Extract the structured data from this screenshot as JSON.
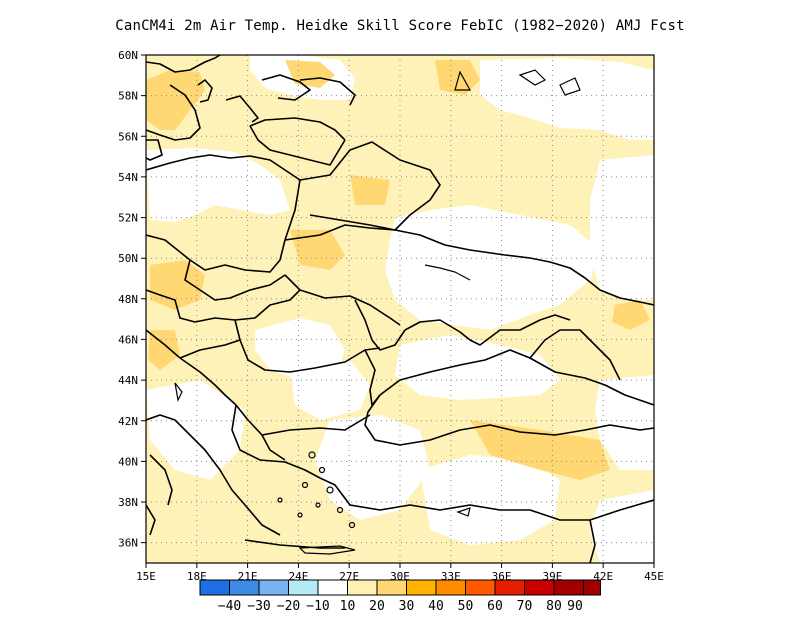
{
  "title": "CanCM4i  2m Air Temp. Heidke Skill Score FebIC (1982−2020) AMJ Fcst",
  "map": {
    "lon_range": [
      15,
      45
    ],
    "lat_range": [
      35,
      60
    ],
    "x_ticks": [
      "15E",
      "18E",
      "21E",
      "24E",
      "27E",
      "30E",
      "33E",
      "36E",
      "39E",
      "42E",
      "45E"
    ],
    "y_ticks": [
      "60N",
      "58N",
      "56N",
      "54N",
      "52N",
      "50N",
      "48N",
      "46N",
      "44N",
      "42N",
      "40N",
      "38N",
      "36N"
    ],
    "grid": "dotted"
  },
  "colorbar": {
    "labels": [
      "−40",
      "−30",
      "−20",
      "−10",
      "10",
      "20",
      "30",
      "40",
      "50",
      "60",
      "70",
      "80",
      "90"
    ],
    "colors": [
      "#1e6fe6",
      "#3c8ce6",
      "#78b4f0",
      "#b4ebf5",
      "#ffffff",
      "#fff0b4",
      "#ffd873",
      "#ffb400",
      "#ff8c00",
      "#ff5a00",
      "#e61e00",
      "#c80000",
      "#a00000"
    ]
  }
}
